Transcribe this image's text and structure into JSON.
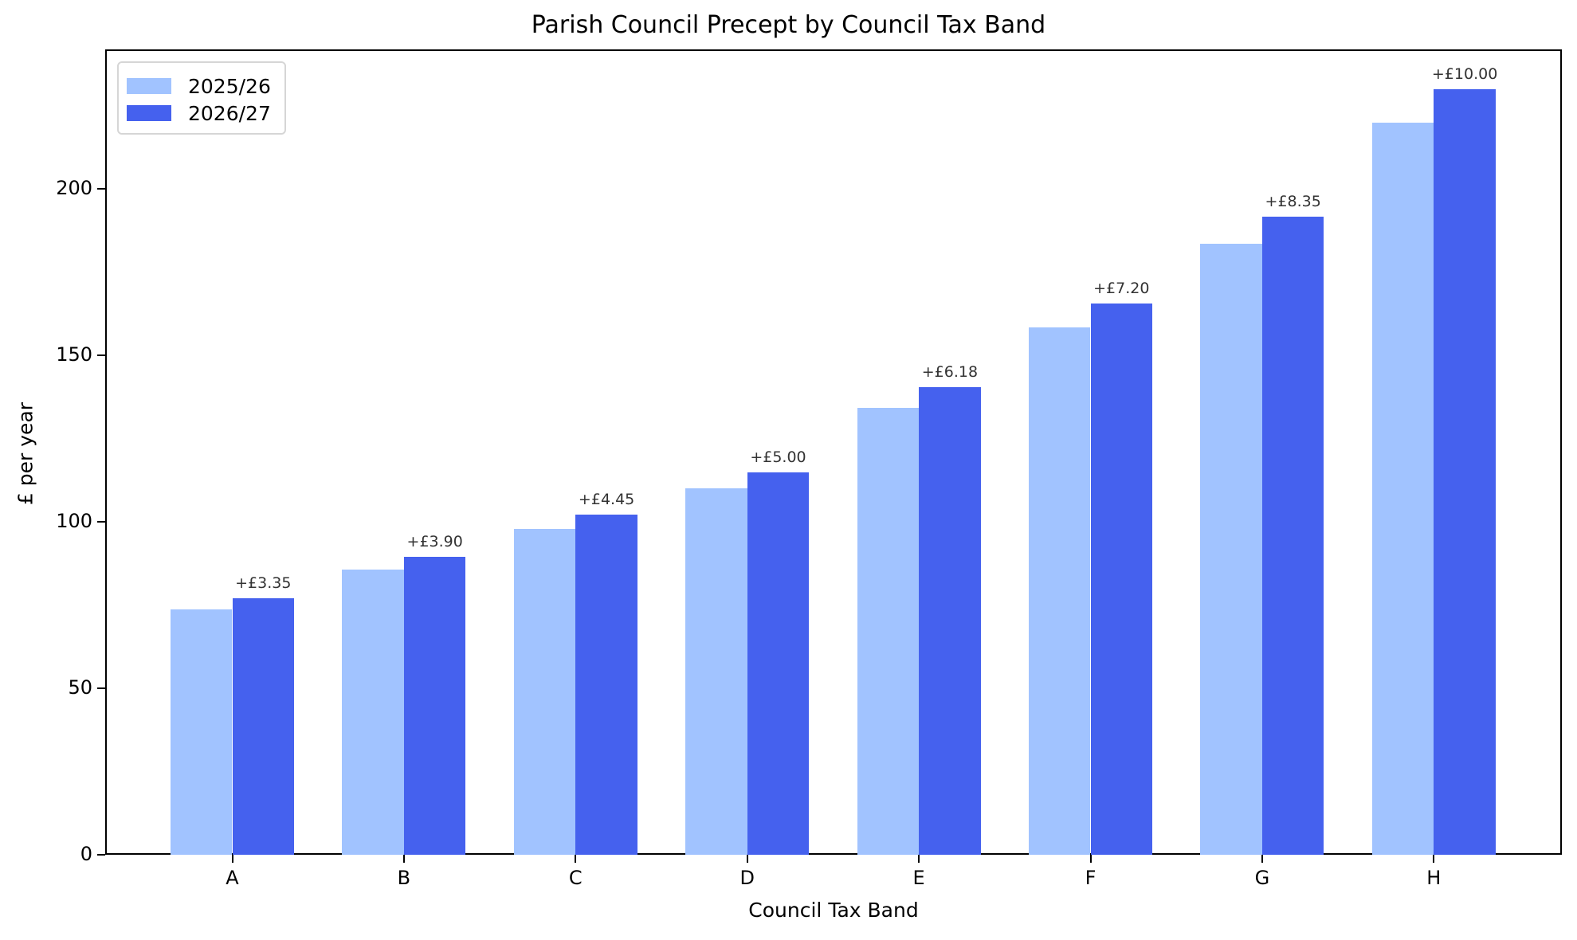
{
  "chart_data": {
    "type": "bar",
    "title": "Parish Council Precept by Council Tax Band",
    "xlabel": "Council Tax Band",
    "ylabel": "£ per year",
    "ylim": [
      0,
      242
    ],
    "yticks": [
      0,
      50,
      100,
      150,
      200
    ],
    "grid": false,
    "legend_position": "upper left",
    "categories": [
      "A",
      "B",
      "C",
      "D",
      "E",
      "F",
      "G",
      "H"
    ],
    "series": [
      {
        "name": "2025/26",
        "color": "#a1c3ff",
        "values": [
          73.65,
          85.7,
          97.8,
          110.0,
          134.3,
          158.45,
          183.5,
          220.0
        ]
      },
      {
        "name": "2026/27",
        "color": "#4561ee",
        "values": [
          77.0,
          89.6,
          102.25,
          115.0,
          140.48,
          165.65,
          191.85,
          230.0
        ]
      }
    ],
    "annotations": [
      "+£3.35",
      "+£3.90",
      "+£4.45",
      "+£5.00",
      "+£6.18",
      "+£7.20",
      "+£8.35",
      "+£10.00"
    ]
  }
}
